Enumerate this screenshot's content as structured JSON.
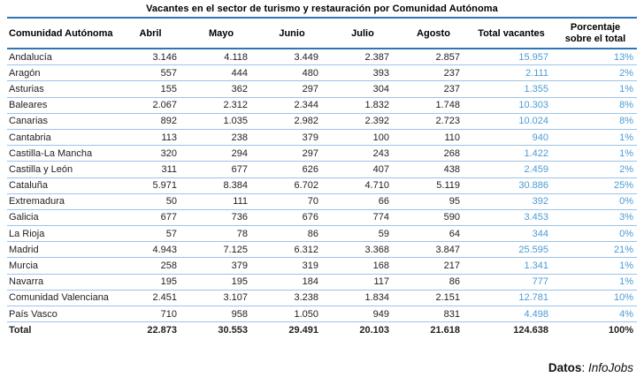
{
  "chart_data": {
    "type": "table",
    "title": "Vacantes en el sector de turismo y restauración por Comunidad Autónoma",
    "columns": [
      "Comunidad Autónoma",
      "Abril",
      "Mayo",
      "Junio",
      "Julio",
      "Agosto",
      "Total vacantes",
      "Porcentaje sobre el total"
    ],
    "last_column_lines": [
      "Porcentaje",
      "sobre el total"
    ],
    "rows": [
      [
        "Andalucía",
        "3.146",
        "4.118",
        "3.449",
        "2.387",
        "2.857",
        "15.957",
        "13%"
      ],
      [
        "Aragón",
        "557",
        "444",
        "480",
        "393",
        "237",
        "2.111",
        "2%"
      ],
      [
        "Asturias",
        "155",
        "362",
        "297",
        "304",
        "237",
        "1.355",
        "1%"
      ],
      [
        "Baleares",
        "2.067",
        "2.312",
        "2.344",
        "1.832",
        "1.748",
        "10.303",
        "8%"
      ],
      [
        "Canarias",
        "892",
        "1.035",
        "2.982",
        "2.392",
        "2.723",
        "10.024",
        "8%"
      ],
      [
        "Cantabria",
        "113",
        "238",
        "379",
        "100",
        "110",
        "940",
        "1%"
      ],
      [
        "Castilla-La Mancha",
        "320",
        "294",
        "297",
        "243",
        "268",
        "1.422",
        "1%"
      ],
      [
        "Castilla y León",
        "311",
        "677",
        "626",
        "407",
        "438",
        "2.459",
        "2%"
      ],
      [
        "Cataluña",
        "5.971",
        "8.384",
        "6.702",
        "4.710",
        "5.119",
        "30.886",
        "25%"
      ],
      [
        "Extremadura",
        "50",
        "111",
        "70",
        "66",
        "95",
        "392",
        "0%"
      ],
      [
        "Galicia",
        "677",
        "736",
        "676",
        "774",
        "590",
        "3.453",
        "3%"
      ],
      [
        "La Rioja",
        "57",
        "78",
        "86",
        "59",
        "64",
        "344",
        "0%"
      ],
      [
        "Madrid",
        "4.943",
        "7.125",
        "6.312",
        "3.368",
        "3.847",
        "25.595",
        "21%"
      ],
      [
        "Murcia",
        "258",
        "379",
        "319",
        "168",
        "217",
        "1.341",
        "1%"
      ],
      [
        "Navarra",
        "195",
        "195",
        "184",
        "117",
        "86",
        "777",
        "1%"
      ],
      [
        "Comunidad Valenciana",
        "2.451",
        "3.107",
        "3.238",
        "1.834",
        "2.151",
        "12.781",
        "10%"
      ],
      [
        "País Vasco",
        "710",
        "958",
        "1.050",
        "949",
        "831",
        "4.498",
        "4%"
      ]
    ],
    "total_row": [
      "Total",
      "22.873",
      "30.553",
      "29.491",
      "20.103",
      "21.618",
      "124.638",
      "100%"
    ],
    "colors": {
      "accent_line": "#2E75B6",
      "row_line": "#9DC3E6",
      "highlight_value": "#4A9BD5",
      "text": "#1F1F1F"
    }
  },
  "footer": {
    "label": "Datos",
    "colon": ": ",
    "source": "InfoJobs"
  }
}
